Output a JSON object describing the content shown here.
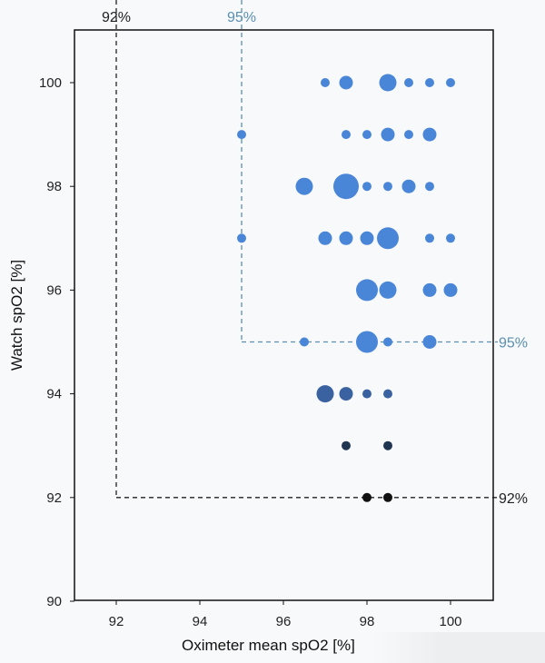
{
  "chart_data": {
    "type": "scatter",
    "xlabel": "Oximeter mean spO2 [%]",
    "ylabel": "Watch spO2 [%]",
    "xlim": [
      91,
      101
    ],
    "ylim": [
      90,
      101
    ],
    "x_ticks": [
      "92",
      "94",
      "96",
      "98",
      "100"
    ],
    "y_ticks": [
      "90",
      "92",
      "94",
      "96",
      "98",
      "100"
    ],
    "grid": false,
    "legend": "none",
    "colors": {
      "light": "#4a86d8",
      "mid": "#3b62a0",
      "dark": "#1f3550",
      "black": "#111111",
      "dashed_95": "#5b8fb0",
      "dashed_92": "#222222"
    },
    "thresholds": [
      {
        "value": 92,
        "label_x": "92%",
        "label_y": "92%",
        "color": "dark"
      },
      {
        "value": 95,
        "label_x": "95%",
        "label_y": "95%",
        "color": "blue"
      }
    ],
    "points": [
      {
        "x": 97.0,
        "y": 100,
        "size": 1,
        "color": "light"
      },
      {
        "x": 97.5,
        "y": 100,
        "size": 2,
        "color": "light"
      },
      {
        "x": 98.5,
        "y": 100,
        "size": 3,
        "color": "light"
      },
      {
        "x": 99.0,
        "y": 100,
        "size": 1,
        "color": "light"
      },
      {
        "x": 99.5,
        "y": 100,
        "size": 1,
        "color": "light"
      },
      {
        "x": 100.0,
        "y": 100,
        "size": 1,
        "color": "light"
      },
      {
        "x": 95.0,
        "y": 99,
        "size": 1,
        "color": "light"
      },
      {
        "x": 97.5,
        "y": 99,
        "size": 1,
        "color": "light"
      },
      {
        "x": 98.0,
        "y": 99,
        "size": 1,
        "color": "light"
      },
      {
        "x": 98.5,
        "y": 99,
        "size": 2,
        "color": "light"
      },
      {
        "x": 99.0,
        "y": 99,
        "size": 1,
        "color": "light"
      },
      {
        "x": 99.5,
        "y": 99,
        "size": 2,
        "color": "light"
      },
      {
        "x": 96.5,
        "y": 98,
        "size": 3,
        "color": "light"
      },
      {
        "x": 97.5,
        "y": 98,
        "size": 5,
        "color": "light"
      },
      {
        "x": 98.0,
        "y": 98,
        "size": 1,
        "color": "light"
      },
      {
        "x": 98.5,
        "y": 98,
        "size": 1,
        "color": "light"
      },
      {
        "x": 99.0,
        "y": 98,
        "size": 2,
        "color": "light"
      },
      {
        "x": 99.5,
        "y": 98,
        "size": 1,
        "color": "light"
      },
      {
        "x": 95.0,
        "y": 97,
        "size": 1,
        "color": "light"
      },
      {
        "x": 97.0,
        "y": 97,
        "size": 2,
        "color": "light"
      },
      {
        "x": 97.5,
        "y": 97,
        "size": 2,
        "color": "light"
      },
      {
        "x": 98.0,
        "y": 97,
        "size": 2,
        "color": "light"
      },
      {
        "x": 98.5,
        "y": 97,
        "size": 4,
        "color": "light"
      },
      {
        "x": 99.5,
        "y": 97,
        "size": 1,
        "color": "light"
      },
      {
        "x": 100.0,
        "y": 97,
        "size": 1,
        "color": "light"
      },
      {
        "x": 98.0,
        "y": 96,
        "size": 4,
        "color": "light"
      },
      {
        "x": 98.5,
        "y": 96,
        "size": 3,
        "color": "light"
      },
      {
        "x": 99.5,
        "y": 96,
        "size": 2,
        "color": "light"
      },
      {
        "x": 100.0,
        "y": 96,
        "size": 2,
        "color": "light"
      },
      {
        "x": 96.5,
        "y": 95,
        "size": 1,
        "color": "light"
      },
      {
        "x": 98.0,
        "y": 95,
        "size": 4,
        "color": "light"
      },
      {
        "x": 98.5,
        "y": 95,
        "size": 1,
        "color": "light"
      },
      {
        "x": 99.5,
        "y": 95,
        "size": 2,
        "color": "light"
      },
      {
        "x": 97.0,
        "y": 94,
        "size": 3,
        "color": "mid"
      },
      {
        "x": 97.5,
        "y": 94,
        "size": 2,
        "color": "mid"
      },
      {
        "x": 98.0,
        "y": 94,
        "size": 1,
        "color": "mid"
      },
      {
        "x": 98.5,
        "y": 94,
        "size": 1,
        "color": "mid"
      },
      {
        "x": 97.5,
        "y": 93,
        "size": 1,
        "color": "dark"
      },
      {
        "x": 98.5,
        "y": 93,
        "size": 1,
        "color": "dark"
      },
      {
        "x": 98.0,
        "y": 92,
        "size": 1,
        "color": "black"
      },
      {
        "x": 98.5,
        "y": 92,
        "size": 1,
        "color": "black"
      }
    ]
  }
}
